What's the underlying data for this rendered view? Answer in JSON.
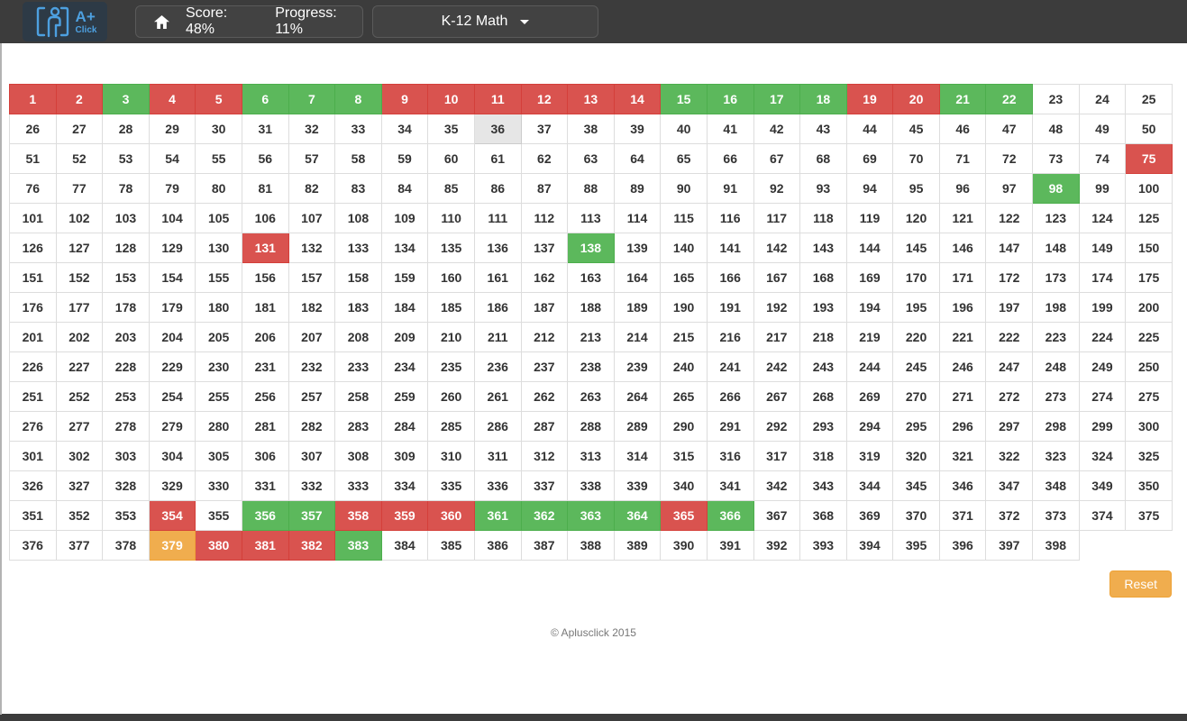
{
  "header": {
    "logo_line1": "A+",
    "logo_line2": "Click",
    "score_label": "Score: 48%",
    "progress_label": "Progress: 11%",
    "dropdown_label": "K-12 Math"
  },
  "grid": {
    "columns": 25,
    "total": 398,
    "red": [
      1,
      2,
      4,
      5,
      9,
      10,
      11,
      12,
      13,
      14,
      19,
      20,
      75,
      131,
      354,
      358,
      359,
      360,
      365,
      380,
      381,
      382
    ],
    "green": [
      3,
      6,
      7,
      8,
      15,
      16,
      17,
      18,
      21,
      22,
      98,
      138,
      356,
      357,
      361,
      362,
      363,
      364,
      366,
      383
    ],
    "orange": [
      379
    ],
    "active": [
      36
    ]
  },
  "colors": {
    "red": "#d9534f",
    "green": "#5cb85c",
    "orange": "#f0ad4e",
    "active_gray": "#e6e6e6",
    "header_bg": "#3c3c3c",
    "accent_blue": "#4da0e0"
  },
  "footer": {
    "reset_label": "Reset",
    "copyright": "© Aplusclick 2015"
  }
}
